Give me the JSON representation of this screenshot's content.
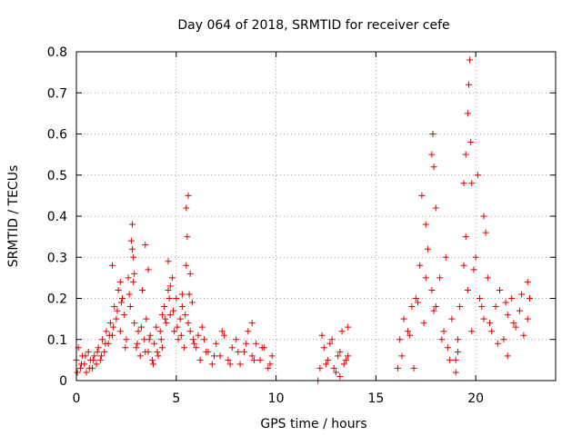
{
  "chart_data": {
    "type": "scatter",
    "title": "Day 064 of 2018, SRMTID for receiver cefe",
    "xlabel": "GPS time / hours",
    "ylabel": "SRMTID / TECUs",
    "xlim": [
      0,
      24
    ],
    "ylim": [
      0,
      0.8
    ],
    "xticks": [
      0,
      5,
      10,
      15,
      20
    ],
    "yticks": [
      0,
      0.1,
      0.2,
      0.3,
      0.4,
      0.5,
      0.6,
      0.7,
      0.8
    ],
    "xtick_labels": [
      "0",
      "5",
      "10",
      "15",
      "20"
    ],
    "ytick_labels": [
      "0",
      "0.1",
      "0.2",
      "0.3",
      "0.4",
      "0.5",
      "0.6",
      "0.7",
      "0.8"
    ],
    "grid": true,
    "marker": "+",
    "color": "#e00000",
    "series": [
      {
        "name": "SRMTID",
        "x": [
          0.0,
          0.1,
          0.2,
          0.3,
          0.4,
          0.5,
          0.6,
          0.7,
          0.8,
          0.9,
          1.0,
          1.1,
          1.2,
          1.3,
          1.4,
          1.5,
          1.6,
          1.7,
          1.8,
          1.9,
          2.0,
          2.1,
          2.2,
          2.3,
          2.4,
          2.5,
          2.6,
          2.7,
          2.8,
          2.9,
          3.0,
          3.1,
          3.2,
          3.3,
          3.4,
          3.5,
          3.6,
          3.7,
          3.8,
          3.9,
          4.0,
          4.1,
          4.2,
          4.3,
          4.4,
          4.5,
          4.6,
          4.7,
          4.8,
          4.9,
          5.0,
          5.1,
          5.2,
          5.3,
          5.4,
          5.5,
          5.6,
          5.7,
          5.8,
          5.9,
          6.0,
          6.2,
          6.4,
          6.6,
          6.8,
          7.0,
          7.2,
          7.4,
          7.6,
          7.8,
          8.0,
          8.2,
          8.4,
          8.6,
          8.8,
          9.0,
          9.2,
          9.4,
          9.6,
          9.8,
          0.05,
          0.25,
          0.45,
          0.65,
          0.85,
          1.05,
          1.25,
          1.45,
          1.65,
          1.85,
          2.05,
          2.25,
          2.45,
          2.65,
          2.85,
          3.05,
          3.25,
          3.45,
          3.65,
          3.85,
          4.05,
          4.25,
          4.45,
          4.65,
          4.85,
          5.05,
          5.25,
          5.45,
          5.65,
          5.85,
          6.1,
          6.5,
          6.9,
          7.3,
          7.7,
          8.1,
          8.5,
          8.9,
          9.3,
          9.7,
          2.75,
          2.8,
          2.85,
          3.45,
          5.5,
          5.55,
          5.6,
          4.6,
          1.8,
          2.2,
          2.9,
          3.6,
          4.3,
          4.7,
          5.3,
          5.7,
          6.3,
          8.8,
          12.2,
          12.4,
          12.6,
          12.8,
          13.0,
          13.2,
          13.4,
          13.6,
          12.3,
          12.5,
          12.7,
          12.9,
          13.1,
          13.3,
          13.5,
          13.6,
          12.1,
          13.2,
          16.2,
          16.4,
          16.6,
          16.8,
          17.0,
          17.2,
          17.4,
          17.6,
          17.8,
          18.0,
          18.2,
          18.4,
          18.6,
          18.8,
          19.0,
          19.2,
          19.4,
          19.6,
          19.8,
          20.0,
          20.2,
          20.4,
          20.6,
          20.8,
          21.0,
          21.2,
          21.4,
          21.6,
          21.8,
          22.0,
          22.2,
          22.4,
          22.6,
          22.7,
          16.3,
          16.7,
          17.1,
          17.5,
          17.9,
          18.3,
          18.7,
          19.1,
          19.5,
          19.9,
          20.3,
          20.7,
          21.1,
          21.5,
          21.9,
          22.3,
          22.6,
          17.3,
          17.5,
          17.8,
          17.85,
          17.9,
          18.0,
          19.4,
          19.5,
          19.6,
          19.65,
          19.7,
          19.75,
          19.8,
          20.1,
          20.4,
          20.5,
          18.5,
          16.1,
          16.9,
          19.0,
          19.1,
          21.6
        ],
        "y": [
          0.05,
          0.08,
          0.03,
          0.06,
          0.04,
          0.02,
          0.07,
          0.05,
          0.03,
          0.06,
          0.04,
          0.08,
          0.05,
          0.1,
          0.07,
          0.12,
          0.09,
          0.14,
          0.11,
          0.18,
          0.15,
          0.22,
          0.12,
          0.2,
          0.16,
          0.1,
          0.25,
          0.18,
          0.32,
          0.14,
          0.08,
          0.12,
          0.06,
          0.22,
          0.1,
          0.15,
          0.07,
          0.11,
          0.05,
          0.09,
          0.13,
          0.06,
          0.12,
          0.08,
          0.18,
          0.14,
          0.22,
          0.16,
          0.25,
          0.12,
          0.2,
          0.1,
          0.15,
          0.18,
          0.08,
          0.28,
          0.14,
          0.12,
          0.19,
          0.09,
          0.08,
          0.05,
          0.1,
          0.07,
          0.04,
          0.09,
          0.06,
          0.11,
          0.05,
          0.08,
          0.1,
          0.04,
          0.07,
          0.12,
          0.06,
          0.09,
          0.05,
          0.08,
          0.03,
          0.06,
          0.02,
          0.04,
          0.06,
          0.03,
          0.05,
          0.07,
          0.06,
          0.09,
          0.11,
          0.13,
          0.17,
          0.19,
          0.08,
          0.21,
          0.24,
          0.09,
          0.13,
          0.07,
          0.1,
          0.04,
          0.07,
          0.1,
          0.15,
          0.2,
          0.17,
          0.13,
          0.11,
          0.16,
          0.21,
          0.1,
          0.11,
          0.07,
          0.06,
          0.12,
          0.04,
          0.07,
          0.09,
          0.05,
          0.08,
          0.04,
          0.34,
          0.38,
          0.3,
          0.33,
          0.42,
          0.35,
          0.45,
          0.29,
          0.28,
          0.24,
          0.26,
          0.27,
          0.16,
          0.23,
          0.21,
          0.26,
          0.13,
          0.14,
          0.03,
          0.08,
          0.05,
          0.1,
          0.02,
          0.07,
          0.04,
          0.06,
          0.11,
          0.04,
          0.09,
          0.03,
          0.06,
          0.12,
          0.05,
          0.13,
          0.0,
          0.01,
          0.1,
          0.15,
          0.12,
          0.18,
          0.2,
          0.28,
          0.14,
          0.32,
          0.22,
          0.18,
          0.25,
          0.12,
          0.08,
          0.15,
          0.05,
          0.18,
          0.28,
          0.22,
          0.12,
          0.3,
          0.2,
          0.15,
          0.25,
          0.12,
          0.18,
          0.22,
          0.1,
          0.16,
          0.2,
          0.13,
          0.17,
          0.11,
          0.15,
          0.2,
          0.06,
          0.11,
          0.19,
          0.25,
          0.17,
          0.1,
          0.05,
          0.1,
          0.35,
          0.27,
          0.18,
          0.14,
          0.09,
          0.19,
          0.14,
          0.21,
          0.24,
          0.45,
          0.38,
          0.55,
          0.6,
          0.52,
          0.42,
          0.48,
          0.55,
          0.65,
          0.72,
          0.78,
          0.58,
          0.48,
          0.5,
          0.4,
          0.36,
          0.3,
          0.03,
          0.03,
          0.02,
          0.07,
          0.06
        ]
      }
    ]
  }
}
